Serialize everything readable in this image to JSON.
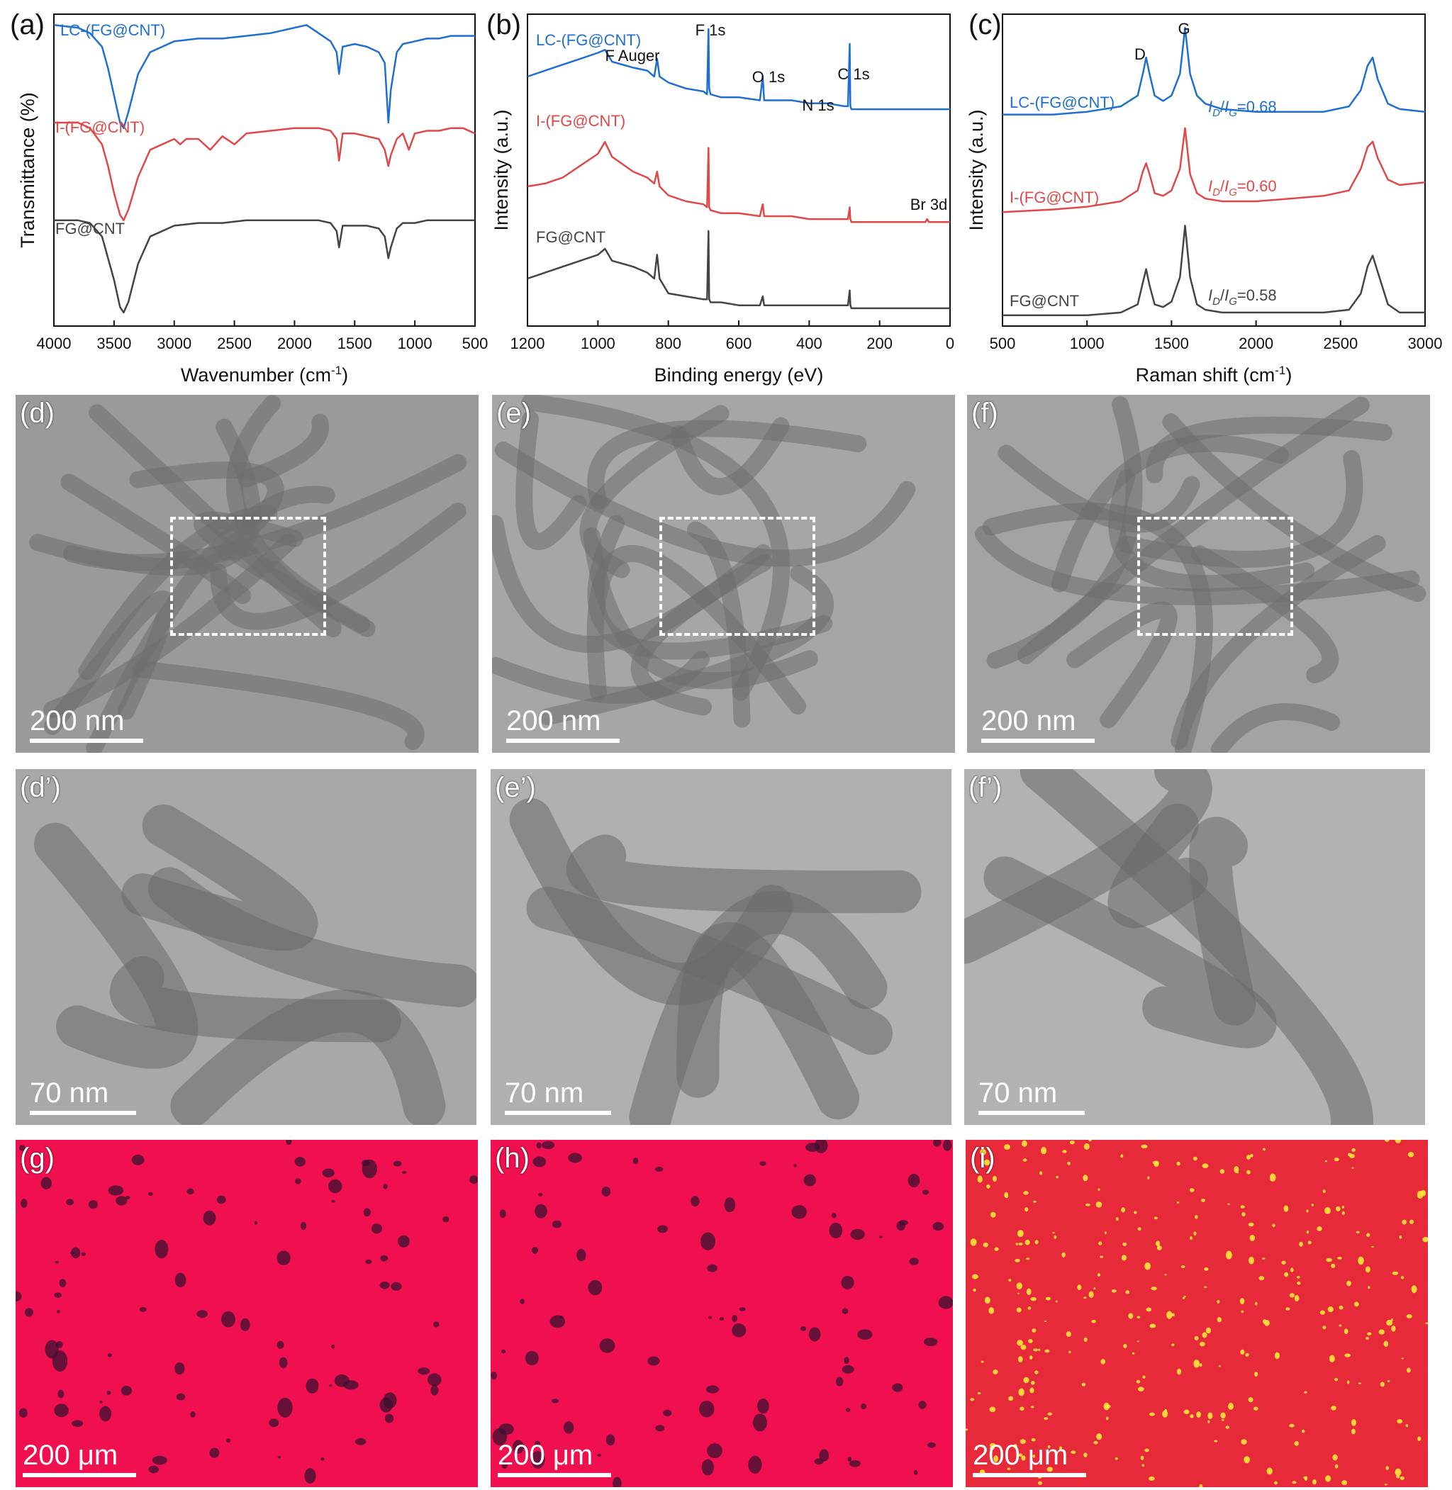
{
  "chart_data": [
    {
      "panel": "(a)",
      "type": "line",
      "xlabel": "Wavenumber (cm",
      "xlabel_sup": "-1",
      "xlabel_tail": ")",
      "ylabel": "Transmittance (%)",
      "xlim": [
        4000,
        500
      ],
      "x_ticks": [
        "4000",
        "3500",
        "3000",
        "2500",
        "2000",
        "1500",
        "1000",
        "500"
      ],
      "series": [
        {
          "name": "LC-(FG@CNT)",
          "color": "#1f6fd0",
          "x": [
            4000,
            3800,
            3700,
            3600,
            3550,
            3500,
            3450,
            3420,
            3380,
            3300,
            3200,
            3000,
            2800,
            2600,
            2400,
            2200,
            2000,
            1900,
            1800,
            1700,
            1650,
            1630,
            1600,
            1500,
            1400,
            1300,
            1250,
            1220,
            1200,
            1150,
            1100,
            1000,
            900,
            800,
            700,
            600,
            500
          ],
          "values": [
            96,
            95,
            93,
            88,
            80,
            70,
            60,
            58,
            64,
            78,
            86,
            90,
            91,
            91,
            92,
            93,
            95,
            96,
            93,
            90,
            86,
            78,
            88,
            89,
            88,
            86,
            82,
            60,
            72,
            86,
            89,
            90,
            91,
            91,
            92,
            92,
            92
          ]
        },
        {
          "name": "I-(FG@CNT)",
          "color": "#e04848",
          "x": [
            4000,
            3800,
            3700,
            3600,
            3550,
            3500,
            3450,
            3420,
            3380,
            3300,
            3200,
            3000,
            2950,
            2900,
            2800,
            2700,
            2600,
            2500,
            2400,
            2200,
            2000,
            1800,
            1700,
            1650,
            1630,
            1600,
            1500,
            1400,
            1300,
            1250,
            1220,
            1200,
            1150,
            1100,
            1050,
            1000,
            900,
            800,
            700,
            600,
            500
          ],
          "values": [
            60,
            60,
            58,
            52,
            44,
            34,
            26,
            24,
            28,
            40,
            50,
            54,
            52,
            54,
            54,
            50,
            55,
            52,
            56,
            57,
            58,
            58,
            57,
            54,
            46,
            56,
            56,
            55,
            54,
            50,
            44,
            48,
            54,
            56,
            50,
            56,
            57,
            57,
            58,
            58,
            56
          ]
        },
        {
          "name": "FG@CNT",
          "color": "#444444",
          "x": [
            4000,
            3800,
            3700,
            3600,
            3550,
            3500,
            3450,
            3420,
            3380,
            3300,
            3200,
            3000,
            2800,
            2600,
            2400,
            2200,
            2000,
            1800,
            1700,
            1650,
            1630,
            1600,
            1500,
            1400,
            1300,
            1250,
            1220,
            1200,
            1150,
            1100,
            1000,
            900,
            800,
            700,
            600,
            500
          ],
          "values": [
            24,
            24,
            23,
            18,
            10,
            2,
            -8,
            -10,
            -6,
            8,
            18,
            22,
            23,
            23,
            24,
            24,
            24,
            24,
            23,
            20,
            14,
            22,
            22,
            22,
            21,
            18,
            10,
            14,
            21,
            23,
            23,
            24,
            24,
            24,
            24,
            24
          ]
        }
      ]
    },
    {
      "panel": "(b)",
      "type": "line",
      "xlabel": "Binding energy (eV)",
      "ylabel": "Intensity (a.u.)",
      "xlim": [
        1200,
        0
      ],
      "x_ticks": [
        "1200",
        "1000",
        "800",
        "600",
        "400",
        "200",
        "0"
      ],
      "annotations": [
        "F Auger",
        "F 1s",
        "O 1s",
        "N 1s",
        "C 1s",
        "Br 3d"
      ],
      "series": [
        {
          "name": "LC-(FG@CNT)",
          "color": "#1f6fd0",
          "x": [
            1200,
            1150,
            1100,
            1050,
            1000,
            980,
            960,
            900,
            860,
            840,
            832,
            825,
            800,
            750,
            700,
            690,
            686,
            684,
            680,
            650,
            600,
            540,
            532,
            528,
            500,
            450,
            400,
            350,
            300,
            290,
            285,
            283,
            280,
            250,
            200,
            150,
            100,
            50,
            0
          ],
          "values": [
            84,
            86,
            88,
            90,
            92,
            93,
            89,
            87,
            86,
            84,
            90,
            84,
            82,
            80,
            79,
            78,
            100,
            80,
            78,
            77,
            77,
            76,
            84,
            76,
            76,
            76,
            75,
            75,
            74,
            74,
            95,
            74,
            73,
            73,
            73,
            73,
            73,
            73,
            73
          ]
        },
        {
          "name": "I-(FG@CNT)",
          "color": "#e04848",
          "x": [
            1200,
            1150,
            1100,
            1050,
            1000,
            980,
            960,
            900,
            860,
            840,
            832,
            825,
            800,
            750,
            700,
            690,
            686,
            684,
            680,
            650,
            600,
            540,
            532,
            528,
            500,
            450,
            400,
            350,
            300,
            290,
            285,
            283,
            280,
            250,
            200,
            150,
            100,
            70,
            65,
            60,
            0
          ],
          "values": [
            47,
            48,
            50,
            54,
            58,
            62,
            57,
            52,
            50,
            48,
            52,
            47,
            44,
            42,
            41,
            40,
            60,
            40,
            39,
            38,
            38,
            37,
            41,
            37,
            37,
            37,
            36,
            36,
            36,
            36,
            40,
            36,
            35,
            35,
            35,
            35,
            35,
            35,
            36,
            35,
            35
          ]
        },
        {
          "name": "FG@CNT",
          "color": "#444444",
          "x": [
            1200,
            1150,
            1100,
            1050,
            1000,
            980,
            960,
            900,
            860,
            840,
            832,
            825,
            800,
            750,
            700,
            690,
            686,
            684,
            680,
            650,
            600,
            540,
            532,
            528,
            500,
            450,
            400,
            350,
            300,
            290,
            285,
            283,
            280,
            250,
            200,
            150,
            100,
            50,
            0
          ],
          "values": [
            16,
            18,
            20,
            22,
            24,
            26,
            22,
            20,
            18,
            16,
            24,
            16,
            11,
            10,
            9,
            9,
            32,
            9,
            8,
            8,
            7,
            7,
            10,
            7,
            7,
            7,
            7,
            7,
            7,
            7,
            12,
            7,
            6,
            6,
            6,
            6,
            6,
            6,
            6
          ]
        }
      ]
    },
    {
      "panel": "(c)",
      "type": "line",
      "xlabel": "Raman shift (cm",
      "xlabel_sup": "-1",
      "xlabel_tail": ")",
      "ylabel": "Intensity (a.u.)",
      "xlim": [
        500,
        3000
      ],
      "x_ticks": [
        "500",
        "1000",
        "1500",
        "2000",
        "2500",
        "3000"
      ],
      "annotations": [
        "D",
        "G"
      ],
      "series": [
        {
          "name": "LC-(FG@CNT)",
          "color": "#1f6fd0",
          "ratio": "=0.68",
          "x": [
            500,
            800,
            1000,
            1200,
            1300,
            1330,
            1350,
            1370,
            1400,
            1450,
            1500,
            1550,
            1580,
            1610,
            1650,
            1700,
            1800,
            2000,
            2200,
            2400,
            2550,
            2620,
            2660,
            2690,
            2720,
            2780,
            2850,
            3000
          ],
          "values": [
            78,
            78,
            79,
            81,
            85,
            93,
            99,
            93,
            85,
            83,
            85,
            93,
            110,
            93,
            85,
            82,
            80,
            79,
            79,
            79,
            81,
            87,
            96,
            99,
            91,
            82,
            80,
            79
          ]
        },
        {
          "name": "I-(FG@CNT)",
          "color": "#e04848",
          "ratio": "=0.60",
          "x": [
            500,
            800,
            1000,
            1200,
            1300,
            1330,
            1350,
            1370,
            1400,
            1450,
            1500,
            1550,
            1580,
            1610,
            1650,
            1700,
            1800,
            2000,
            2200,
            2400,
            2550,
            2620,
            2660,
            2690,
            2720,
            2780,
            2850,
            3000
          ],
          "values": [
            42,
            43,
            44,
            46,
            50,
            57,
            60,
            56,
            49,
            48,
            50,
            58,
            73,
            56,
            49,
            47,
            46,
            46,
            47,
            48,
            50,
            58,
            66,
            68,
            62,
            54,
            52,
            53
          ]
        },
        {
          "name": "FG@CNT",
          "color": "#444444",
          "ratio": "=0.58",
          "x": [
            500,
            800,
            1000,
            1200,
            1300,
            1330,
            1350,
            1370,
            1400,
            1450,
            1500,
            1550,
            1580,
            1610,
            1650,
            1700,
            1800,
            2000,
            2200,
            2400,
            2550,
            2620,
            2660,
            2690,
            2720,
            2780,
            2850,
            3000
          ],
          "values": [
            4,
            4,
            4,
            5,
            8,
            16,
            21,
            15,
            8,
            7,
            9,
            18,
            37,
            18,
            8,
            6,
            5,
            5,
            5,
            5,
            6,
            12,
            22,
            26,
            20,
            8,
            5,
            5
          ]
        }
      ]
    }
  ],
  "ratio_prefix_sub1": "D",
  "ratio_prefix_sub2": "G",
  "ratio_I": "I",
  "ratio_slash": "/",
  "images": {
    "d": {
      "label": "(d)",
      "scale": "200 nm",
      "bg": "#9a9a9a"
    },
    "e": {
      "label": "(e)",
      "scale": "200 nm",
      "bg": "#a6a6a6"
    },
    "f": {
      "label": "(f)",
      "scale": "200 nm",
      "bg": "#a3a3a3"
    },
    "d2": {
      "label": "(d’)",
      "scale": "70 nm",
      "bg": "#a8a8a8"
    },
    "e2": {
      "label": "(e’)",
      "scale": "70 nm",
      "bg": "#b0b0b0"
    },
    "f2": {
      "label": "(f’)",
      "scale": "70 nm",
      "bg": "#b2b2b2"
    },
    "g": {
      "label": "(g)",
      "scale": "200 μm",
      "bg": "#f0104f"
    },
    "h": {
      "label": "(h)",
      "scale": "200 μm",
      "bg": "#f0104f"
    },
    "i": {
      "label": "(i)",
      "scale": "200 μm",
      "bg": "#e62a3a"
    }
  }
}
